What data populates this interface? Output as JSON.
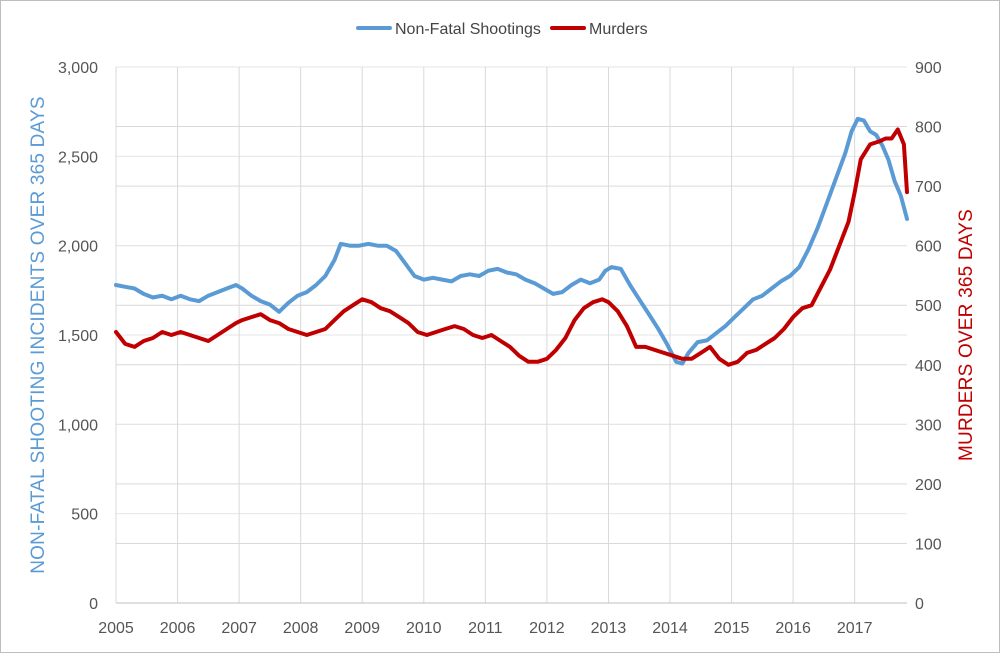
{
  "chart_data": {
    "type": "line",
    "xlabel": "",
    "x_ticks": [
      "2005",
      "2006",
      "2007",
      "2008",
      "2009",
      "2010",
      "2011",
      "2012",
      "2013",
      "2014",
      "2015",
      "2016",
      "2017"
    ],
    "xlim": [
      2005.0,
      2017.85
    ],
    "y_left": {
      "label": "NON-FATAL SHOOTING INCIDENTS OVER 365 DAYS",
      "ylim": [
        0,
        3000
      ],
      "ticks": [
        "0",
        "500",
        "1,000",
        "1,500",
        "2,000",
        "2,500",
        "3,000"
      ],
      "color": "#5b9bd5"
    },
    "y_right": {
      "label": "MURDERS OVER 365 DAYS",
      "ylim": [
        0,
        900
      ],
      "ticks": [
        "0",
        "100",
        "200",
        "300",
        "400",
        "500",
        "600",
        "700",
        "800",
        "900"
      ],
      "color": "#c00000"
    },
    "grid": true,
    "legend": {
      "placement": "top-center"
    },
    "series": [
      {
        "name": "Non-Fatal Shootings",
        "axis": "left",
        "color": "#5b9bd5",
        "x": [
          2005.0,
          2005.15,
          2005.3,
          2005.45,
          2005.6,
          2005.75,
          2005.9,
          2006.05,
          2006.2,
          2006.35,
          2006.5,
          2006.65,
          2006.8,
          2006.95,
          2007.05,
          2007.2,
          2007.35,
          2007.5,
          2007.65,
          2007.8,
          2007.95,
          2008.1,
          2008.25,
          2008.4,
          2008.55,
          2008.65,
          2008.8,
          2008.95,
          2009.1,
          2009.25,
          2009.4,
          2009.55,
          2009.7,
          2009.85,
          2010.0,
          2010.15,
          2010.3,
          2010.45,
          2010.6,
          2010.75,
          2010.9,
          2011.05,
          2011.2,
          2011.35,
          2011.5,
          2011.65,
          2011.8,
          2011.95,
          2012.1,
          2012.25,
          2012.4,
          2012.55,
          2012.7,
          2012.85,
          2012.95,
          2013.05,
          2013.2,
          2013.35,
          2013.5,
          2013.65,
          2013.8,
          2013.95,
          2014.1,
          2014.2,
          2014.3,
          2014.45,
          2014.6,
          2014.75,
          2014.9,
          2015.05,
          2015.2,
          2015.35,
          2015.5,
          2015.65,
          2015.8,
          2015.95,
          2016.1,
          2016.25,
          2016.4,
          2016.55,
          2016.7,
          2016.85,
          2016.95,
          2017.05,
          2017.15,
          2017.25,
          2017.35,
          2017.45,
          2017.55,
          2017.65,
          2017.75,
          2017.85
        ],
        "values": [
          1780,
          1770,
          1760,
          1730,
          1710,
          1720,
          1700,
          1720,
          1700,
          1690,
          1720,
          1740,
          1760,
          1780,
          1760,
          1720,
          1690,
          1670,
          1630,
          1680,
          1720,
          1740,
          1780,
          1830,
          1920,
          2010,
          2000,
          2000,
          2010,
          2000,
          2000,
          1970,
          1900,
          1830,
          1810,
          1820,
          1810,
          1800,
          1830,
          1840,
          1830,
          1860,
          1870,
          1850,
          1840,
          1810,
          1790,
          1760,
          1730,
          1740,
          1780,
          1810,
          1790,
          1810,
          1860,
          1880,
          1870,
          1780,
          1700,
          1620,
          1540,
          1450,
          1350,
          1340,
          1400,
          1460,
          1470,
          1510,
          1550,
          1600,
          1650,
          1700,
          1720,
          1760,
          1800,
          1830,
          1880,
          1980,
          2100,
          2240,
          2380,
          2520,
          2640,
          2710,
          2700,
          2640,
          2620,
          2560,
          2480,
          2360,
          2280,
          2150
        ]
      },
      {
        "name": "Murders",
        "axis": "right",
        "color": "#c00000",
        "x": [
          2005.0,
          2005.15,
          2005.3,
          2005.45,
          2005.6,
          2005.75,
          2005.9,
          2006.05,
          2006.2,
          2006.35,
          2006.5,
          2006.65,
          2006.8,
          2006.95,
          2007.05,
          2007.2,
          2007.35,
          2007.5,
          2007.65,
          2007.8,
          2007.95,
          2008.1,
          2008.25,
          2008.4,
          2008.55,
          2008.7,
          2008.85,
          2009.0,
          2009.15,
          2009.3,
          2009.45,
          2009.6,
          2009.75,
          2009.9,
          2010.05,
          2010.2,
          2010.35,
          2010.5,
          2010.65,
          2010.8,
          2010.95,
          2011.1,
          2011.25,
          2011.4,
          2011.55,
          2011.7,
          2011.85,
          2012.0,
          2012.15,
          2012.3,
          2012.45,
          2012.6,
          2012.75,
          2012.9,
          2013.0,
          2013.15,
          2013.3,
          2013.45,
          2013.6,
          2013.75,
          2013.9,
          2014.05,
          2014.2,
          2014.35,
          2014.5,
          2014.65,
          2014.8,
          2014.95,
          2015.1,
          2015.25,
          2015.4,
          2015.55,
          2015.7,
          2015.85,
          2016.0,
          2016.15,
          2016.3,
          2016.45,
          2016.6,
          2016.75,
          2016.9,
          2017.0,
          2017.1,
          2017.25,
          2017.4,
          2017.5,
          2017.6,
          2017.7,
          2017.8,
          2017.85
        ],
        "values": [
          455,
          435,
          430,
          440,
          445,
          455,
          450,
          455,
          450,
          445,
          440,
          450,
          460,
          470,
          475,
          480,
          485,
          475,
          470,
          460,
          455,
          450,
          455,
          460,
          475,
          490,
          500,
          510,
          505,
          495,
          490,
          480,
          470,
          455,
          450,
          455,
          460,
          465,
          460,
          450,
          445,
          450,
          440,
          430,
          415,
          405,
          405,
          410,
          425,
          445,
          475,
          495,
          505,
          510,
          505,
          490,
          465,
          430,
          430,
          425,
          420,
          415,
          410,
          410,
          420,
          430,
          410,
          400,
          405,
          420,
          425,
          435,
          445,
          460,
          480,
          495,
          500,
          530,
          560,
          600,
          640,
          690,
          745,
          770,
          775,
          780,
          780,
          795,
          770,
          690
        ]
      }
    ]
  }
}
